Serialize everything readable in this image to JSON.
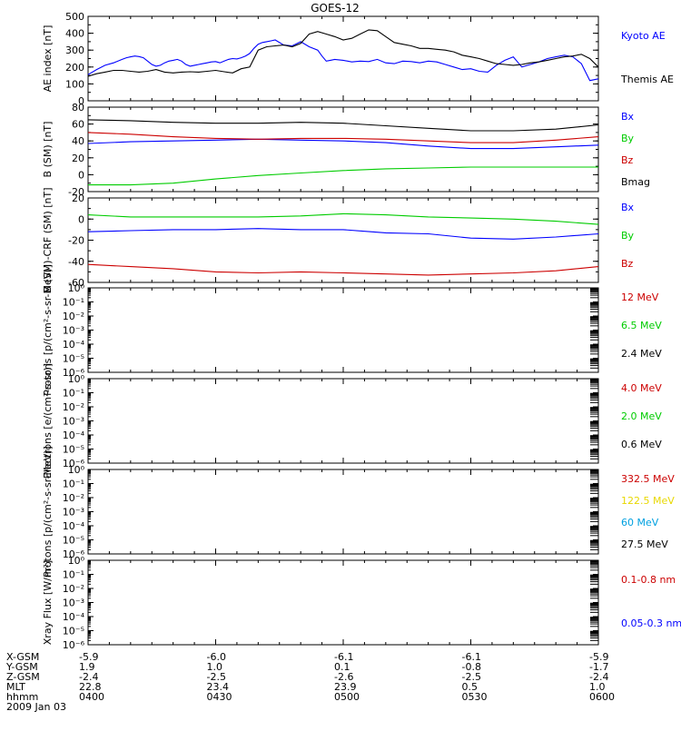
{
  "title": "GOES-12",
  "colors": {
    "black": "#000000",
    "blue": "#0000ff",
    "green": "#00cc00",
    "red": "#cc0000",
    "yellow": "#e8d800",
    "cyan": "#00a0e0"
  },
  "orbit": {
    "row_labels": [
      "X-GSM",
      "Y-GSM",
      "Z-GSM",
      "MLT",
      "hhmm"
    ],
    "date": "2009 Jan 03",
    "columns": [
      [
        "-5.9",
        "1.9",
        "-2.4",
        "22.8",
        "0400"
      ],
      [
        "-6.0",
        "1.0",
        "-2.5",
        "23.4",
        "0430"
      ],
      [
        "-6.1",
        "0.1",
        "-2.6",
        "23.9",
        "0500"
      ],
      [
        "-6.1",
        "-0.8",
        "-2.5",
        "0.5",
        "0530"
      ],
      [
        "-5.9",
        "-1.7",
        "-2.4",
        "1.0",
        "0600"
      ]
    ]
  },
  "chart_data": [
    {
      "type": "line",
      "ylabel": "AE index [nT]",
      "ylim": [
        0,
        500
      ],
      "yticks": [
        "500",
        "400",
        "300",
        "200",
        "100",
        "0"
      ],
      "x_range_hhmm": [
        "0400",
        "0600"
      ],
      "legend": [
        {
          "text": "Kyoto AE",
          "color": "#0000ff"
        },
        {
          "text": "Themis AE",
          "color": "#000000"
        }
      ],
      "series": [
        {
          "name": "Kyoto AE",
          "color": "#0000ff",
          "x": [
            0,
            2,
            4,
            6,
            8,
            9,
            10,
            11,
            12,
            13,
            14,
            15,
            16,
            17,
            18,
            19,
            20,
            21,
            22,
            23,
            24,
            25,
            26,
            27,
            28,
            29,
            30,
            31,
            32,
            33,
            34,
            35,
            36,
            37,
            38,
            39,
            40,
            41,
            42,
            43,
            44,
            46,
            48,
            50,
            52,
            54,
            55,
            56,
            57,
            58,
            60,
            62,
            64,
            66,
            68,
            70,
            72,
            74,
            76,
            78,
            80,
            82,
            84,
            86,
            88,
            90,
            92,
            94,
            96,
            98,
            100,
            102,
            104,
            106,
            108,
            110,
            112,
            114,
            116,
            118,
            120
          ],
          "y": [
            155,
            185,
            210,
            225,
            245,
            255,
            260,
            265,
            262,
            255,
            235,
            215,
            205,
            210,
            225,
            235,
            240,
            245,
            235,
            215,
            205,
            210,
            215,
            220,
            225,
            230,
            232,
            225,
            235,
            245,
            250,
            248,
            255,
            265,
            280,
            310,
            335,
            345,
            350,
            355,
            360,
            330,
            325,
            350,
            320,
            300,
            265,
            235,
            240,
            245,
            240,
            230,
            235,
            232,
            245,
            225,
            220,
            235,
            232,
            225,
            235,
            230,
            215,
            200,
            185,
            190,
            175,
            170,
            210,
            240,
            260,
            200,
            215,
            230,
            250,
            260,
            270,
            260,
            220,
            120,
            130
          ]
        },
        {
          "name": "Themis AE",
          "color": "#000000",
          "x": [
            0,
            2,
            4,
            6,
            8,
            10,
            12,
            14,
            16,
            18,
            20,
            22,
            24,
            26,
            28,
            30,
            32,
            34,
            36,
            38,
            40,
            42,
            44,
            46,
            48,
            50,
            52,
            54,
            56,
            58,
            60,
            62,
            64,
            66,
            68,
            70,
            72,
            74,
            76,
            78,
            80,
            82,
            84,
            86,
            88,
            90,
            92,
            94,
            96,
            98,
            100,
            102,
            104,
            106,
            108,
            110,
            112,
            114,
            116,
            118,
            120
          ],
          "y": [
            145,
            160,
            170,
            180,
            180,
            175,
            170,
            175,
            185,
            170,
            165,
            170,
            172,
            170,
            175,
            180,
            172,
            165,
            190,
            200,
            300,
            320,
            325,
            330,
            320,
            340,
            395,
            410,
            395,
            380,
            360,
            370,
            395,
            420,
            415,
            380,
            345,
            335,
            325,
            310,
            310,
            305,
            300,
            290,
            270,
            260,
            250,
            235,
            220,
            215,
            210,
            215,
            225,
            230,
            240,
            250,
            260,
            265,
            275,
            250,
            200
          ]
        }
      ]
    },
    {
      "type": "line",
      "ylabel": "B (SM) [nT]",
      "ylim": [
        -20,
        80
      ],
      "yticks": [
        "80",
        "60",
        "40",
        "20",
        "0",
        "-20"
      ],
      "x_range_hhmm": [
        "0400",
        "0600"
      ],
      "legend": [
        {
          "text": "Bx",
          "color": "#0000ff"
        },
        {
          "text": "By",
          "color": "#00cc00"
        },
        {
          "text": "Bz",
          "color": "#cc0000"
        },
        {
          "text": "Bmag",
          "color": "#000000"
        }
      ],
      "series": [
        {
          "name": "Bx",
          "color": "#0000ff",
          "x": [
            0,
            10,
            20,
            30,
            40,
            50,
            60,
            70,
            80,
            90,
            100,
            110,
            120
          ],
          "y": [
            37,
            39,
            40,
            41,
            42,
            41,
            40,
            38,
            34,
            31,
            31,
            33,
            35
          ]
        },
        {
          "name": "By",
          "color": "#00cc00",
          "x": [
            0,
            10,
            20,
            30,
            40,
            50,
            60,
            70,
            80,
            90,
            100,
            110,
            120
          ],
          "y": [
            -12,
            -12,
            -10,
            -5,
            -1,
            2,
            5,
            7,
            8,
            9,
            9,
            9,
            9
          ]
        },
        {
          "name": "Bz",
          "color": "#cc0000",
          "x": [
            0,
            10,
            20,
            30,
            40,
            50,
            60,
            70,
            80,
            90,
            100,
            110,
            120
          ],
          "y": [
            50,
            48,
            45,
            43,
            42,
            43,
            43,
            42,
            40,
            38,
            38,
            41,
            45
          ]
        },
        {
          "name": "Bmag",
          "color": "#000000",
          "x": [
            0,
            10,
            20,
            30,
            40,
            50,
            60,
            70,
            80,
            90,
            100,
            110,
            120
          ],
          "y": [
            65,
            64,
            62,
            61,
            61,
            62,
            61,
            58,
            55,
            52,
            52,
            54,
            59
          ]
        }
      ]
    },
    {
      "type": "line",
      "ylabel": "B (SM)-CRF (SM) [nT]",
      "ylim": [
        -60,
        20
      ],
      "yticks": [
        "20",
        "0",
        "-20",
        "-40",
        "-60"
      ],
      "x_range_hhmm": [
        "0400",
        "0600"
      ],
      "legend": [
        {
          "text": "Bx",
          "color": "#0000ff"
        },
        {
          "text": "By",
          "color": "#00cc00"
        },
        {
          "text": "Bz",
          "color": "#cc0000"
        }
      ],
      "series": [
        {
          "name": "Bx",
          "color": "#0000ff",
          "x": [
            0,
            10,
            20,
            30,
            40,
            50,
            60,
            70,
            80,
            90,
            100,
            110,
            120
          ],
          "y": [
            -12,
            -11,
            -10,
            -10,
            -9,
            -10,
            -10,
            -13,
            -14,
            -18,
            -19,
            -17,
            -14
          ]
        },
        {
          "name": "By",
          "color": "#00cc00",
          "x": [
            0,
            10,
            20,
            30,
            40,
            50,
            60,
            70,
            80,
            90,
            100,
            110,
            120
          ],
          "y": [
            4,
            2,
            2,
            2,
            2,
            3,
            5,
            4,
            2,
            1,
            0,
            -2,
            -5
          ]
        },
        {
          "name": "Bz",
          "color": "#cc0000",
          "x": [
            0,
            10,
            20,
            30,
            40,
            50,
            60,
            70,
            80,
            90,
            100,
            110,
            120
          ],
          "y": [
            -43,
            -45,
            -47,
            -50,
            -51,
            -50,
            -51,
            -52,
            -53,
            -52,
            -51,
            -49,
            -45
          ]
        }
      ]
    },
    {
      "type": "line",
      "ylabel": "Protons [p/(cm²-s-sr-MeV)]",
      "ylim": [
        "10^-6",
        "10^0"
      ],
      "yticks": [
        "10⁰",
        "10⁻¹",
        "10⁻²",
        "10⁻³",
        "10⁻⁴",
        "10⁻⁵",
        "10⁻⁶"
      ],
      "x_range_hhmm": [
        "0400",
        "0600"
      ],
      "legend": [
        {
          "text": "12 MeV",
          "color": "#cc0000"
        },
        {
          "text": "6.5 MeV",
          "color": "#00cc00"
        },
        {
          "text": "2.4 MeV",
          "color": "#000000"
        }
      ],
      "series": []
    },
    {
      "type": "line",
      "ylabel": "Electrons [e/(cm²-s-sr)]",
      "ylim": [
        "10^-6",
        "10^0"
      ],
      "yticks": [
        "10⁰",
        "10⁻¹",
        "10⁻²",
        "10⁻³",
        "10⁻⁴",
        "10⁻⁵",
        "10⁻⁶"
      ],
      "x_range_hhmm": [
        "0400",
        "0600"
      ],
      "legend": [
        {
          "text": "4.0 MeV",
          "color": "#cc0000"
        },
        {
          "text": "2.0 MeV",
          "color": "#00cc00"
        },
        {
          "text": "0.6 MeV",
          "color": "#000000"
        }
      ],
      "series": []
    },
    {
      "type": "line",
      "ylabel": "Protons [p/(cm²-s-sr-MeV)]",
      "ylim": [
        "10^-6",
        "10^0"
      ],
      "yticks": [
        "10⁰",
        "10⁻¹",
        "10⁻²",
        "10⁻³",
        "10⁻⁴",
        "10⁻⁵",
        "10⁻⁶"
      ],
      "x_range_hhmm": [
        "0400",
        "0600"
      ],
      "legend": [
        {
          "text": "332.5 MeV",
          "color": "#cc0000"
        },
        {
          "text": "122.5 MeV",
          "color": "#e8d800"
        },
        {
          "text": "60 MeV",
          "color": "#00a0e0"
        },
        {
          "text": "27.5 MeV",
          "color": "#000000"
        }
      ],
      "series": []
    },
    {
      "type": "line",
      "ylabel": "Xray Flux [W/m²]",
      "ylim": [
        "10^-6",
        "10^0"
      ],
      "yticks": [
        "10⁰",
        "10⁻¹",
        "10⁻²",
        "10⁻³",
        "10⁻⁴",
        "10⁻⁵",
        "10⁻⁶"
      ],
      "x_range_hhmm": [
        "0400",
        "0600"
      ],
      "legend": [
        {
          "text": "0.1-0.8 nm",
          "color": "#cc0000"
        },
        {
          "text": "0.05-0.3 nm",
          "color": "#0000ff"
        }
      ],
      "series": []
    }
  ]
}
